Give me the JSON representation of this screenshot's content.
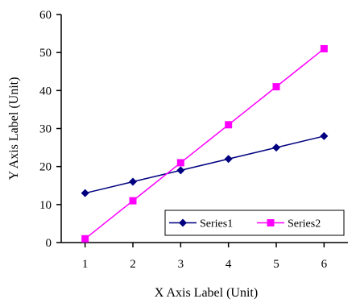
{
  "chart_data": {
    "type": "line",
    "x": [
      1,
      2,
      3,
      4,
      5,
      6
    ],
    "xlim": [
      0.5,
      6.5
    ],
    "ylim": [
      0,
      60
    ],
    "xticks": [
      1,
      2,
      3,
      4,
      5,
      6
    ],
    "yticks": [
      0,
      10,
      20,
      30,
      40,
      50,
      60
    ],
    "xlabel": "X Axis Label (Unit)",
    "ylabel": "Y Axis Label (Unit)",
    "grid": false,
    "legend_position": "bottom-right",
    "series": [
      {
        "name": "Series1",
        "values": [
          13,
          16,
          19,
          22,
          25,
          28
        ],
        "color": "#000080",
        "marker": "diamond"
      },
      {
        "name": "Series2",
        "values": [
          1,
          11,
          21,
          31,
          41,
          51
        ],
        "color": "#ff00ff",
        "marker": "square"
      }
    ]
  }
}
